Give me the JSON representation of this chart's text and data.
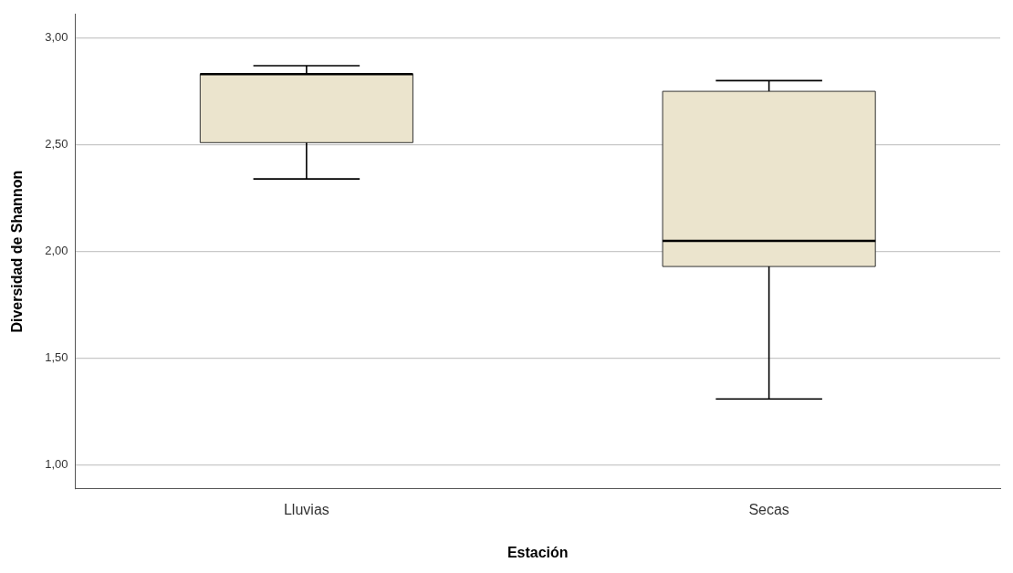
{
  "chart_data": {
    "type": "box",
    "xlabel": "Estación",
    "ylabel": "Diversidad de Shannon",
    "categories": [
      "Lluvias",
      "Secas"
    ],
    "boxes": [
      {
        "low": 2.34,
        "q1": 2.51,
        "median": 2.83,
        "q3": 2.83,
        "high": 2.87
      },
      {
        "low": 1.31,
        "q1": 1.93,
        "median": 2.05,
        "q3": 2.75,
        "high": 2.8
      }
    ],
    "color": "#ebe4cd",
    "ylim": [
      0.89,
      3.11
    ],
    "yticks": [
      {
        "value": 1,
        "label": "1,00"
      },
      {
        "value": 1.5,
        "label": "1,50"
      },
      {
        "value": 2,
        "label": "2,00"
      },
      {
        "value": 2.5,
        "label": "2,50"
      },
      {
        "value": 3,
        "label": "3,00"
      }
    ],
    "grid": "y"
  }
}
